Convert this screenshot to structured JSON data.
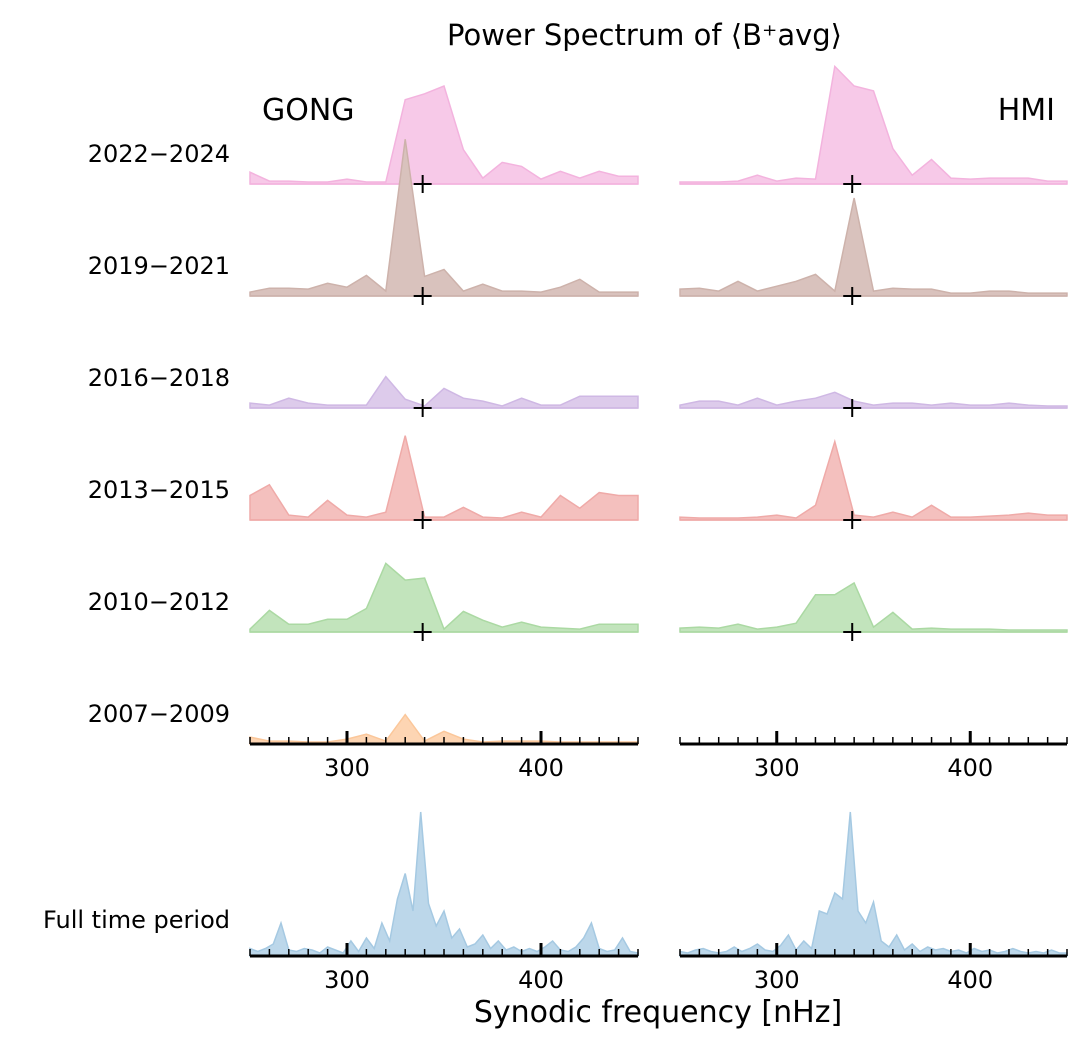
{
  "chart_data": {
    "type": "area",
    "title": "Power Spectrum of ⟨B⁺avg⟩",
    "xlabel": "Synodic frequency [nHz]",
    "xlim": [
      250,
      450
    ],
    "xticks": [
      "300",
      "400"
    ],
    "columns": [
      "GONG",
      "HMI"
    ],
    "marker_frequency": 339,
    "x": [
      250,
      260,
      270,
      280,
      290,
      300,
      310,
      320,
      330,
      340,
      350,
      360,
      370,
      380,
      390,
      400,
      410,
      420,
      430,
      440,
      450
    ],
    "rows": [
      {
        "label": "2022−2024",
        "color": "#f7c9e8",
        "edge": "#f3b3de",
        "gong": [
          0.12,
          0.03,
          0.03,
          0.02,
          0.02,
          0.05,
          0.02,
          0.02,
          0.86,
          0.92,
          1.0,
          0.35,
          0.06,
          0.22,
          0.18,
          0.05,
          0.13,
          0.06,
          0.13,
          0.08,
          0.08
        ],
        "hmi": [
          0.02,
          0.02,
          0.02,
          0.03,
          0.09,
          0.03,
          0.06,
          0.05,
          1.2,
          1.0,
          0.95,
          0.36,
          0.09,
          0.25,
          0.06,
          0.05,
          0.06,
          0.06,
          0.06,
          0.03,
          0.03
        ]
      },
      {
        "label": "2019−2021",
        "color": "#d9c2bd",
        "edge": "#cdb2ab",
        "gong": [
          0.04,
          0.08,
          0.08,
          0.07,
          0.13,
          0.09,
          0.21,
          0.05,
          1.6,
          0.2,
          0.27,
          0.05,
          0.12,
          0.05,
          0.05,
          0.04,
          0.09,
          0.17,
          0.04,
          0.04,
          0.04
        ],
        "hmi": [
          0.07,
          0.08,
          0.05,
          0.15,
          0.05,
          0.1,
          0.15,
          0.22,
          0.05,
          1.0,
          0.05,
          0.08,
          0.07,
          0.07,
          0.03,
          0.03,
          0.05,
          0.05,
          0.03,
          0.03,
          0.03
        ]
      },
      {
        "label": "2016−2018",
        "color": "#ddcbeb",
        "edge": "#cfb8e4",
        "gong": [
          0.05,
          0.03,
          0.1,
          0.05,
          0.03,
          0.03,
          0.03,
          0.32,
          0.09,
          0.02,
          0.2,
          0.1,
          0.07,
          0.02,
          0.1,
          0.03,
          0.03,
          0.12,
          0.12,
          0.12,
          0.12
        ],
        "hmi": [
          0.03,
          0.07,
          0.07,
          0.03,
          0.1,
          0.03,
          0.07,
          0.1,
          0.16,
          0.07,
          0.03,
          0.05,
          0.05,
          0.03,
          0.05,
          0.03,
          0.03,
          0.05,
          0.03,
          0.02,
          0.02
        ]
      },
      {
        "label": "2013−2015",
        "color": "#f4c0be",
        "edge": "#efaaa8",
        "gong": [
          0.25,
          0.36,
          0.05,
          0.03,
          0.2,
          0.05,
          0.03,
          0.08,
          0.86,
          0.03,
          0.03,
          0.13,
          0.03,
          0.02,
          0.08,
          0.03,
          0.25,
          0.12,
          0.28,
          0.25,
          0.25
        ],
        "hmi": [
          0.03,
          0.02,
          0.02,
          0.02,
          0.03,
          0.05,
          0.02,
          0.15,
          0.8,
          0.05,
          0.03,
          0.08,
          0.03,
          0.15,
          0.03,
          0.03,
          0.04,
          0.05,
          0.07,
          0.05,
          0.05
        ]
      },
      {
        "label": "2010−2012",
        "color": "#c2e4bc",
        "edge": "#abd9a3",
        "gong": [
          0.03,
          0.22,
          0.08,
          0.08,
          0.13,
          0.13,
          0.24,
          0.7,
          0.53,
          0.55,
          0.03,
          0.21,
          0.12,
          0.05,
          0.1,
          0.05,
          0.04,
          0.03,
          0.08,
          0.08,
          0.08
        ],
        "hmi": [
          0.04,
          0.05,
          0.04,
          0.08,
          0.03,
          0.05,
          0.09,
          0.38,
          0.38,
          0.5,
          0.05,
          0.2,
          0.03,
          0.04,
          0.03,
          0.03,
          0.03,
          0.02,
          0.02,
          0.02,
          0.02
        ]
      },
      {
        "label": "2007−2009",
        "color": "#fdd5b3",
        "edge": "#fbc79a",
        "gong": [
          0.07,
          0.03,
          0.03,
          0.02,
          0.02,
          0.05,
          0.1,
          0.03,
          0.3,
          0.03,
          0.13,
          0.05,
          0.02,
          0.03,
          0.03,
          0.03,
          0.02,
          0.02,
          0.02,
          0.02,
          0.02
        ],
        "hmi": [
          0,
          0,
          0,
          0,
          0,
          0,
          0,
          0,
          0,
          0,
          0,
          0,
          0,
          0,
          0,
          0,
          0,
          0,
          0,
          0,
          0
        ]
      }
    ],
    "full_period": {
      "label": "Full time period",
      "color": "#bcd7ea",
      "edge": "#a5c9e2",
      "x": [
        250,
        254,
        258,
        262,
        266,
        270,
        274,
        278,
        282,
        286,
        290,
        294,
        298,
        302,
        306,
        310,
        314,
        318,
        322,
        326,
        330,
        334,
        338,
        342,
        346,
        350,
        354,
        358,
        362,
        366,
        370,
        374,
        378,
        382,
        386,
        390,
        394,
        398,
        402,
        406,
        410,
        414,
        418,
        422,
        426,
        430,
        434,
        438,
        442,
        446,
        450
      ],
      "gong": [
        0.05,
        0.03,
        0.05,
        0.08,
        0.22,
        0.04,
        0.03,
        0.05,
        0.04,
        0.02,
        0.06,
        0.04,
        0.02,
        0.1,
        0.03,
        0.12,
        0.05,
        0.22,
        0.1,
        0.38,
        0.55,
        0.3,
        1.0,
        0.35,
        0.2,
        0.3,
        0.12,
        0.18,
        0.06,
        0.08,
        0.14,
        0.05,
        0.1,
        0.04,
        0.06,
        0.03,
        0.05,
        0.03,
        0.06,
        0.1,
        0.04,
        0.03,
        0.06,
        0.12,
        0.22,
        0.05,
        0.03,
        0.04,
        0.12,
        0.03,
        0.02
      ],
      "hmi": [
        0.03,
        0.02,
        0.04,
        0.05,
        0.03,
        0.02,
        0.03,
        0.06,
        0.03,
        0.05,
        0.08,
        0.04,
        0.03,
        0.07,
        0.14,
        0.04,
        0.1,
        0.05,
        0.3,
        0.28,
        0.42,
        0.38,
        1.0,
        0.3,
        0.22,
        0.36,
        0.1,
        0.06,
        0.14,
        0.04,
        0.08,
        0.03,
        0.06,
        0.04,
        0.05,
        0.03,
        0.04,
        0.02,
        0.05,
        0.03,
        0.04,
        0.02,
        0.03,
        0.05,
        0.03,
        0.02,
        0.03,
        0.02,
        0.04,
        0.02,
        0.02
      ]
    }
  }
}
